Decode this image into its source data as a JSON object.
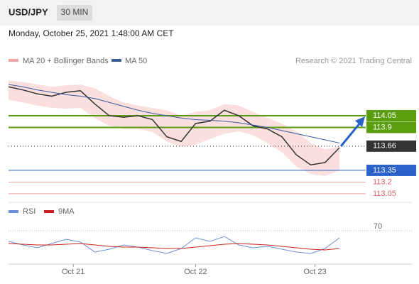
{
  "header": {
    "pair": "USD/JPY",
    "timeframe": "30 MIN",
    "timestamp": "Monday, October 25, 2021 1:48:00 AM CET",
    "credit": "Research © 2021 Trading Central"
  },
  "chart_data": [
    {
      "type": "line",
      "x": [
        0,
        1,
        2,
        3,
        4,
        5,
        6,
        7,
        8,
        9,
        10,
        11,
        12,
        13,
        14,
        15,
        16,
        17,
        18,
        19,
        20,
        21,
        22,
        23
      ],
      "xlim": [
        0,
        23
      ],
      "xticks": [
        {
          "value": 4.5,
          "label": "Oct 21"
        },
        {
          "value": 13,
          "label": "Oct 22"
        },
        {
          "value": 21.3,
          "label": "Oct 23"
        }
      ],
      "ylim": [
        112.94,
        114.85
      ],
      "band": {
        "name": "MA 20 + Bollinger Bands",
        "color": "#f4a3a3",
        "upper": [
          114.5,
          114.48,
          114.45,
          114.42,
          114.44,
          114.45,
          114.4,
          114.3,
          114.22,
          114.18,
          114.15,
          114.12,
          114.05,
          114.1,
          114.12,
          114.2,
          114.18,
          114.1,
          114.02,
          113.95,
          113.85,
          113.7,
          113.62,
          113.66
        ],
        "lower": [
          114.25,
          114.22,
          114.18,
          114.15,
          114.14,
          114.15,
          114.02,
          113.92,
          113.88,
          113.88,
          113.84,
          113.72,
          113.65,
          113.68,
          113.75,
          113.82,
          113.85,
          113.8,
          113.7,
          113.58,
          113.4,
          113.3,
          113.28,
          113.35
        ]
      },
      "series": [
        {
          "name": "price",
          "color": "#333333",
          "values": [
            114.42,
            114.38,
            114.33,
            114.3,
            114.35,
            114.37,
            114.2,
            114.05,
            114.03,
            114.05,
            114.0,
            113.78,
            113.72,
            113.95,
            113.98,
            114.12,
            114.05,
            113.92,
            113.88,
            113.78,
            113.55,
            113.42,
            113.45,
            113.64
          ]
        },
        {
          "name": "MA 50",
          "color": "#3a5a9c",
          "values": [
            114.45,
            114.42,
            114.38,
            114.35,
            114.32,
            114.3,
            114.27,
            114.22,
            114.17,
            114.12,
            114.08,
            114.05,
            114.02,
            114.0,
            113.99,
            113.98,
            113.96,
            113.93,
            113.9,
            113.86,
            113.82,
            113.78,
            113.74,
            113.7
          ]
        }
      ],
      "levels": [
        {
          "value": 114.05,
          "color": "#5a9e0f"
        },
        {
          "value": 113.9,
          "color": "#5a9e0f"
        },
        {
          "value": 113.66,
          "color": "#333333"
        },
        {
          "value": 113.35,
          "color": "#2b62c9"
        },
        {
          "value": 113.2,
          "color": "#e06060"
        },
        {
          "value": 113.05,
          "color": "#e06060"
        }
      ]
    },
    {
      "type": "line",
      "x": [
        0,
        1,
        2,
        3,
        4,
        5,
        6,
        7,
        8,
        9,
        10,
        11,
        12,
        13,
        14,
        15,
        16,
        17,
        18,
        19,
        20,
        21,
        22,
        23
      ],
      "xlim": [
        0,
        23
      ],
      "ylim": [
        20,
        85
      ],
      "yticks": [
        70
      ],
      "series": [
        {
          "name": "RSI",
          "color": "#6a8fd8",
          "values": [
            55,
            50,
            46,
            52,
            58,
            54,
            40,
            44,
            50,
            47,
            42,
            38,
            45,
            60,
            55,
            62,
            50,
            46,
            48,
            44,
            40,
            38,
            45,
            60
          ]
        },
        {
          "name": "9MA",
          "color": "#cc1f1f",
          "values": [
            52,
            51,
            50,
            50,
            51,
            52,
            50,
            48,
            47,
            47,
            46,
            45,
            45,
            47,
            49,
            51,
            52,
            51,
            50,
            48,
            46,
            44,
            43,
            45
          ]
        }
      ]
    }
  ]
}
